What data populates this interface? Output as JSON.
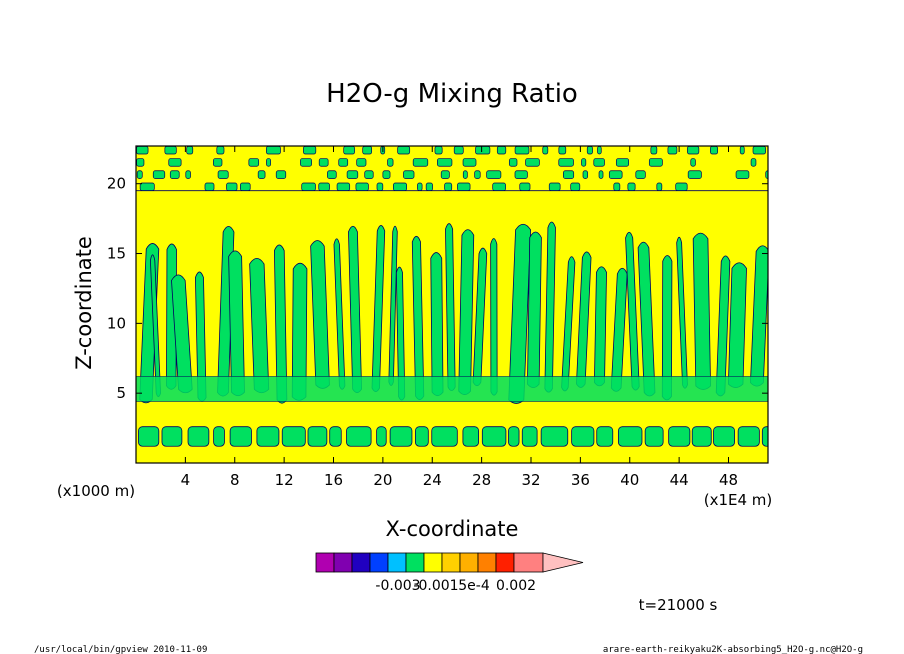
{
  "chart_data": {
    "type": "heatmap",
    "title": "H2O-g Mixing Ratio",
    "xlabel": "X-coordinate",
    "ylabel": "Z-coordinate",
    "x_unit_left": "(x1000 m)",
    "x_unit_right": "(x1E4 m)",
    "x_ticks": [
      4,
      8,
      12,
      16,
      20,
      24,
      28,
      32,
      36,
      40,
      44,
      48
    ],
    "y_ticks": [
      5,
      10,
      15,
      20
    ],
    "xlim": [
      0,
      51.2
    ],
    "ylim": [
      0,
      22.7
    ],
    "colorbar": {
      "colors": [
        "#b000b0",
        "#8000b0",
        "#2000c0",
        "#0040ff",
        "#00c0ff",
        "#00e060",
        "#ffff00",
        "#ffd000",
        "#ffb000",
        "#ff8000",
        "#ff2000",
        "#ff8080",
        "#ffc0c0"
      ],
      "tick_labels": [
        "-0.003",
        "-0.001",
        "5e-4",
        "0.002"
      ]
    },
    "regions": {
      "background_level_color": "#ffff00",
      "feature_level_color": "#00e060",
      "contour_line_color": "#000060",
      "near_surface_band_z": [
        1.2,
        2.6
      ],
      "upper_band_z": [
        19.2,
        22.7
      ],
      "column_tops_z": [
        13,
        17
      ],
      "column_base_z": 4.5
    }
  },
  "footer": {
    "time": "t=21000 s",
    "program": "/usr/local/bin/gpview   2010-11-09",
    "source": "arare-earth-reikyaku2K-absorbing5_H2O-g.nc@H2O-g"
  }
}
